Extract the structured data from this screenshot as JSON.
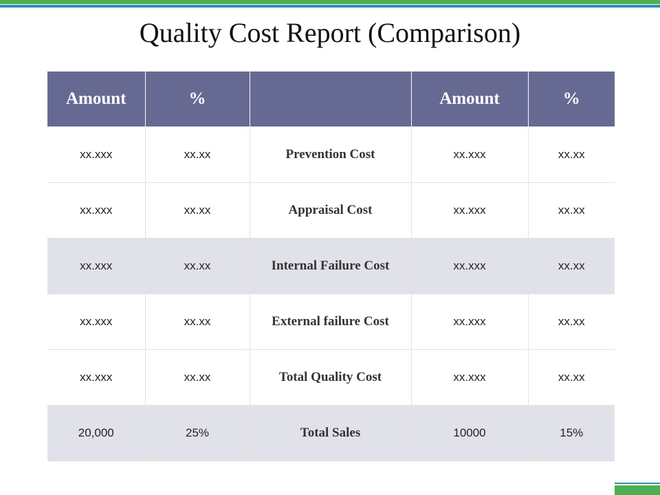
{
  "title": "Quality Cost Report (Comparison)",
  "table": {
    "headers": [
      "Amount",
      "%",
      "",
      "Amount",
      "%"
    ],
    "rows": [
      {
        "left_amount": "xx.xxx",
        "left_pct": "xx.xx",
        "label": "Prevention Cost",
        "right_amount": "xx.xxx",
        "right_pct": "xx.xx"
      },
      {
        "left_amount": "xx.xxx",
        "left_pct": "xx.xx",
        "label": "Appraisal Cost",
        "right_amount": "xx.xxx",
        "right_pct": "xx.xx"
      },
      {
        "left_amount": "xx.xxx",
        "left_pct": "xx.xx",
        "label": "Internal Failure Cost",
        "right_amount": "xx.xxx",
        "right_pct": "xx.xx"
      },
      {
        "left_amount": "xx.xxx",
        "left_pct": "xx.xx",
        "label": "External failure Cost",
        "right_amount": "xx.xxx",
        "right_pct": "xx.xx"
      },
      {
        "left_amount": "xx.xxx",
        "left_pct": "xx.xx",
        "label": "Total Quality Cost",
        "right_amount": "xx.xxx",
        "right_pct": "xx.xx"
      },
      {
        "left_amount": "20,000",
        "left_pct": "25%",
        "label": "Total Sales",
        "right_amount": "10000",
        "right_pct": "15%"
      }
    ]
  },
  "colors": {
    "header_bg": "#666a93",
    "shaded_row_bg": "#e1e1e9",
    "accent_green": "#4caf50",
    "accent_blue": "#2e8fb5"
  }
}
